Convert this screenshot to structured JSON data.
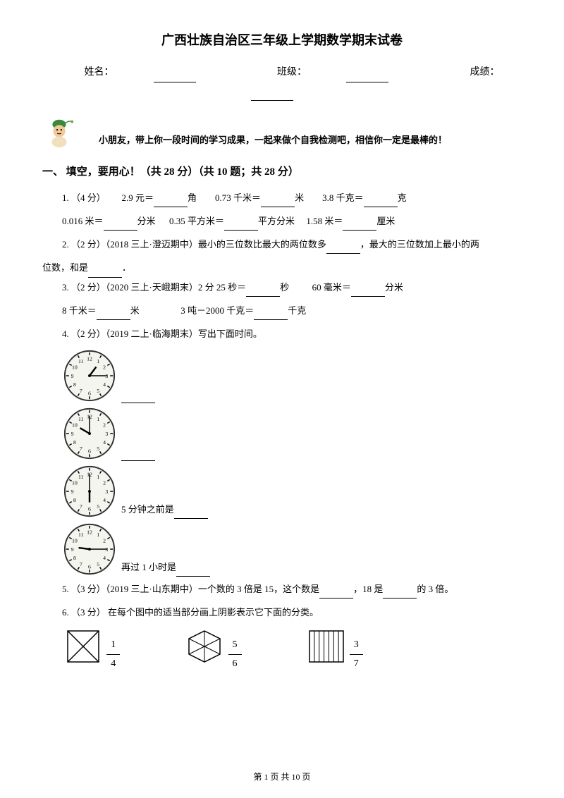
{
  "title": "广西壮族自治区三年级上学期数学期末试卷",
  "info": {
    "name_label": "姓名：",
    "class_label": "班级：",
    "score_label": "成绩："
  },
  "intro": "小朋友，带上你一段时间的学习成果，一起来做个自我检测吧，相信你一定是最棒的！",
  "section1": "一、 填空，要用心！（共 28 分）（共 10 题；共 28 分）",
  "q1": {
    "prefix": "1.     （4 分）",
    "p1a": "2.9 元＝",
    "p1b": "角",
    "p2a": "0.73 千米＝",
    "p2b": "米",
    "p3a": "3.8 千克＝",
    "p3b": "克",
    "p4a": "0.016 米＝",
    "p4b": "分米",
    "p5a": "0.35 平方米＝",
    "p5b": "平方分米",
    "p6a": "1.58 米＝",
    "p6b": "厘米"
  },
  "q2": {
    "prefix": "2.  （2 分）（2018 三上·澄迈期中）最小的三位数比最大的两位数多",
    "mid": "，最大的三位数加上最小的两",
    "line2": "位数，和是",
    "end": "．"
  },
  "q3": {
    "prefix": "3.  （2 分）（2020 三上·天峨期末）2 分 25 秒＝",
    "p1b": "秒",
    "p2a": "60 毫米＝",
    "p2b": "分米",
    "p3a": "8 千米＝",
    "p3b": "米",
    "p4a": "3 吨－2000 千克＝",
    "p4b": "千克"
  },
  "q4": {
    "prefix": "4.  （2 分）（2019 二上·临海期末）写出下面时间。",
    "c3": "5 分钟之前是",
    "c4": "再过 1 小时是"
  },
  "q5": {
    "prefix": "5.  （3 分）（2019 三上·山东期中）一个数的 3 倍是 15，这个数是",
    "mid": "，18 是",
    "end": "的 3 倍。"
  },
  "q6": {
    "prefix": "6.  （3 分）  在每个图中的适当部分画上阴影表示它下面的分类。"
  },
  "fractions": {
    "f1n": "1",
    "f1d": "4",
    "f2n": "5",
    "f2d": "6",
    "f3n": "3",
    "f3d": "7"
  },
  "clocks": [
    {
      "hour_angle": 37,
      "minute_angle": 90
    },
    {
      "hour_angle": 300,
      "minute_angle": 0
    },
    {
      "hour_angle": 180,
      "minute_angle": 0
    },
    {
      "hour_angle": 277,
      "minute_angle": 90
    }
  ],
  "mascot_colors": {
    "hat": "#3a8a3a",
    "face": "#f4c999",
    "shirt": "#f0e0c0"
  },
  "footer": "第 1 页 共 10 页"
}
